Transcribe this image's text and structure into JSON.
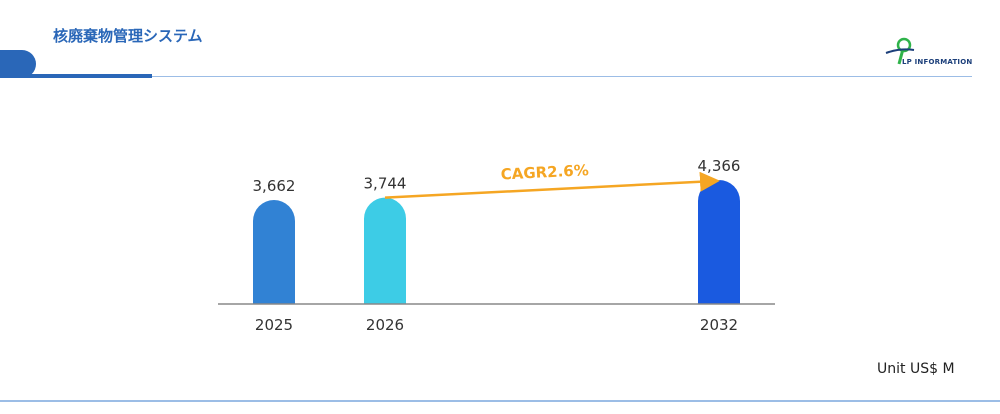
{
  "header": {
    "title": "核廃棄物管理システム",
    "logo_text": "LP INFORMATION"
  },
  "unit_label": "Unit US$ M",
  "colors": {
    "brand_blue": "#2a67b8",
    "rule_blue": "#9cbde6",
    "cagr_orange": "#f5a623"
  },
  "chart_data": {
    "type": "bar",
    "categories": [
      "2025",
      "2026",
      "2032"
    ],
    "values": [
      3662,
      3744,
      4366
    ],
    "value_labels": [
      "3,662",
      "3,744",
      "4,366"
    ],
    "bar_colors": [
      "#3182d4",
      "#3dcce6",
      "#1a5ae0"
    ],
    "annotation": {
      "text": "CAGR2.6%",
      "from": "2026",
      "to": "2032"
    },
    "title": "",
    "xlabel": "",
    "ylabel": ""
  }
}
